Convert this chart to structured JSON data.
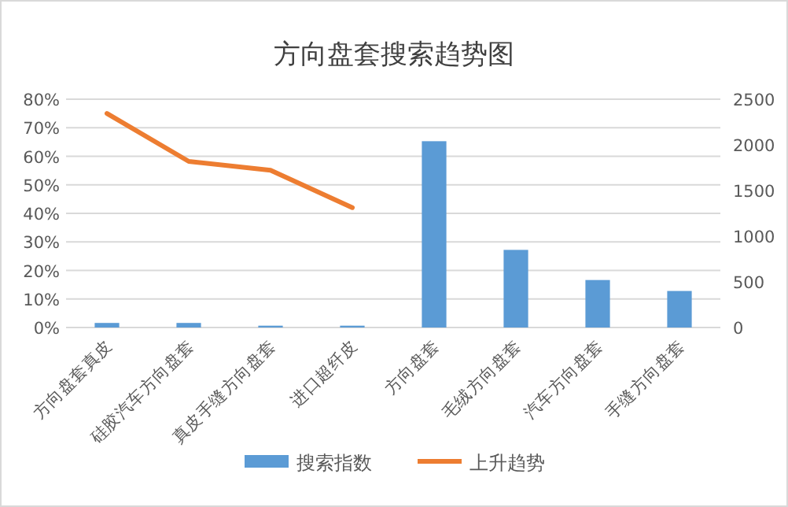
{
  "chart_data": {
    "type": "bar",
    "title": "方向盘套搜索趋势图",
    "categories": [
      "方向盘套真皮",
      "硅胶汽车方向盘套",
      "真皮手缝方向盘套",
      "进口超纤皮",
      "方向盘套",
      "毛绒方向盘套",
      "汽车方向盘套",
      "手缝方向盘套"
    ],
    "series": [
      {
        "name": "搜索指数",
        "axis": "y2",
        "color": "#5b9bd5",
        "values": [
          50,
          50,
          20,
          20,
          2040,
          850,
          520,
          400
        ]
      },
      {
        "name": "上升趋势",
        "type": "line",
        "axis": "y",
        "color": "#ed7d31",
        "values": [
          75,
          58.2,
          55.1,
          42,
          null,
          null,
          null,
          null
        ]
      }
    ],
    "ylim": [
      0,
      80
    ],
    "yticks": [
      {
        "value": 0,
        "label": "0%"
      },
      {
        "value": 10,
        "label": "10%"
      },
      {
        "value": 20,
        "label": "20%"
      },
      {
        "value": 30,
        "label": "30%"
      },
      {
        "value": 40,
        "label": "40%"
      },
      {
        "value": 50,
        "label": "50%"
      },
      {
        "value": 60,
        "label": "60%"
      },
      {
        "value": 70,
        "label": "70%"
      },
      {
        "value": 80,
        "label": "80%"
      }
    ],
    "y2lim": [
      0,
      2500
    ],
    "y2ticks": [
      0,
      500,
      1000,
      1500,
      2000,
      2500
    ],
    "grid": "y",
    "legend": "bottom",
    "marker": "none"
  }
}
